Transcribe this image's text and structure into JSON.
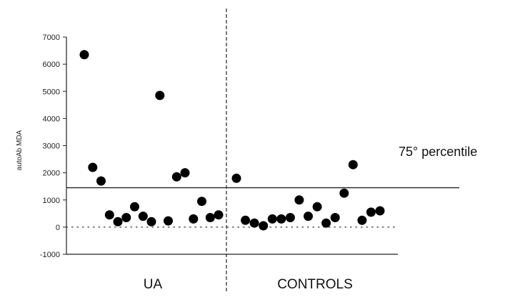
{
  "chart_data": {
    "type": "scatter",
    "ylabel": "autoAb MDA",
    "ylim": [
      -1000,
      7000
    ],
    "yticks": [
      -1000,
      0,
      1000,
      2000,
      3000,
      4000,
      5000,
      6000,
      7000
    ],
    "ytick_labels": [
      "-1000",
      "0",
      "1000",
      "2000",
      "3000",
      "4000",
      "5000",
      "6000",
      "7000"
    ],
    "groups": [
      "UA",
      "CONTROLS"
    ],
    "reference_lines": [
      {
        "label": "75° percentile",
        "y": 1450,
        "style": "solid"
      },
      {
        "y": 0,
        "style": "dotted"
      }
    ],
    "series": [
      {
        "group": "UA",
        "values": [
          6350,
          2200,
          1700,
          450,
          200,
          350,
          750,
          400,
          200,
          4850,
          230,
          1850,
          2000,
          300,
          950,
          350,
          450
        ]
      },
      {
        "group": "CONTROLS",
        "values": [
          1800,
          250,
          150,
          50,
          300,
          300,
          350,
          1000,
          400,
          750,
          150,
          350,
          1250,
          2300,
          250,
          550,
          600
        ]
      }
    ],
    "grid": false,
    "legend": "none"
  }
}
